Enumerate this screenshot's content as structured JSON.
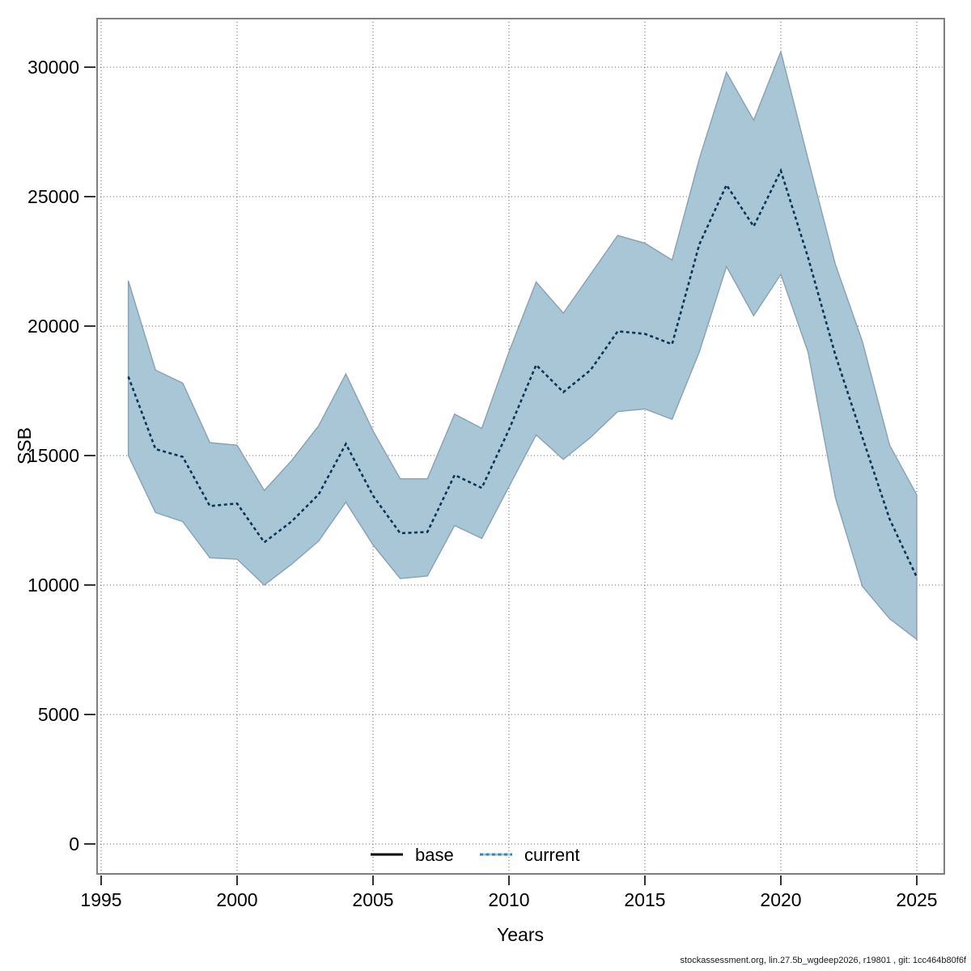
{
  "page": {
    "background": "#ffffff"
  },
  "axes": {
    "x_label": "Years",
    "y_label": "SSB",
    "x_ticks": [
      1995,
      2000,
      2005,
      2010,
      2015,
      2020,
      2025
    ],
    "y_ticks": [
      0,
      5000,
      10000,
      15000,
      20000,
      25000,
      30000
    ]
  },
  "legend": {
    "base_label": "base",
    "current_label": "current"
  },
  "footer": {
    "text": "stockassessment.org, lin.27.5b_wgdeep2026, r19801 , git: 1cc464b80f6f"
  },
  "colors": {
    "band_fill": "#a9c6d7",
    "band_edge": "#8ba4b3",
    "line_underlay": "#9ecae1",
    "line_dash": "#14334a",
    "legend_current_dash": "#3d7fae",
    "grid": "#666666",
    "border": "#7f7f7f",
    "tick": "#333333"
  },
  "chart_data": {
    "type": "area",
    "title": "",
    "xlabel": "Years",
    "ylabel": "SSB",
    "xlim": [
      1994.8,
      2026.3
    ],
    "ylim": [
      -1150,
      31900
    ],
    "grid": true,
    "legend_position": "bottom",
    "x": [
      1996,
      1997,
      1998,
      1999,
      2000,
      2001,
      2002,
      2003,
      2004,
      2005,
      2006,
      2007,
      2008,
      2009,
      2010,
      2011,
      2012,
      2013,
      2014,
      2015,
      2016,
      2017,
      2018,
      2019,
      2020,
      2021,
      2022,
      2023,
      2024,
      2025
    ],
    "series": [
      {
        "name": "current",
        "style": "dotted",
        "values": [
          18050,
          15250,
          14950,
          13050,
          13150,
          11650,
          12450,
          13500,
          15450,
          13450,
          12000,
          12050,
          14250,
          13750,
          16000,
          18500,
          17450,
          18300,
          19800,
          19700,
          19300,
          23150,
          25450,
          23850,
          26000,
          22650,
          18900,
          15700,
          12550,
          10300
        ]
      },
      {
        "name": "current_ci_lower",
        "style": "band-edge",
        "values": [
          15000,
          12800,
          12450,
          11050,
          11000,
          10000,
          10800,
          11700,
          13200,
          11550,
          10250,
          10350,
          12300,
          11800,
          13800,
          15800,
          14850,
          15700,
          16700,
          16800,
          16400,
          19000,
          22300,
          20400,
          22000,
          19000,
          13400,
          9950,
          8700,
          7900
        ]
      },
      {
        "name": "current_ci_upper",
        "style": "band-edge",
        "values": [
          21750,
          18300,
          17800,
          15500,
          15400,
          13650,
          14800,
          16150,
          18150,
          15950,
          14100,
          14100,
          16600,
          16050,
          19000,
          21700,
          20500,
          22000,
          23500,
          23200,
          22550,
          26450,
          29800,
          27950,
          30600,
          26450,
          22400,
          19400,
          15400,
          13480
        ]
      }
    ]
  }
}
